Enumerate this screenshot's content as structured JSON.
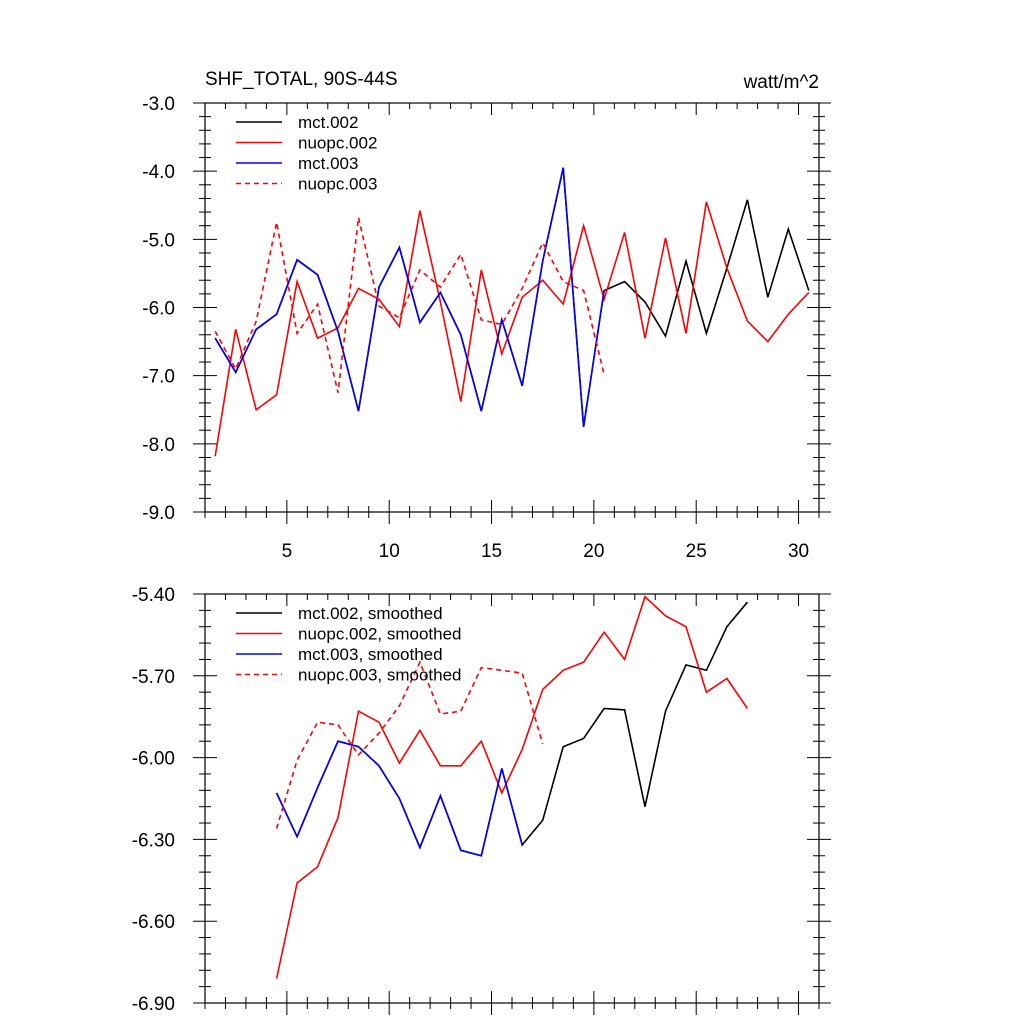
{
  "chart_data": [
    {
      "type": "line",
      "title": "SHF_TOTAL, 90S-44S",
      "units": "watt/m^2",
      "xlim": [
        1,
        31
      ],
      "ylim": [
        -9.0,
        -3.0
      ],
      "xticks": [
        5,
        10,
        15,
        20,
        25,
        30
      ],
      "xtick_labels": [
        "5",
        "10",
        "15",
        "20",
        "25",
        "30"
      ],
      "yticks": [
        -9.0,
        -8.0,
        -7.0,
        -6.0,
        -5.0,
        -4.0,
        -3.0
      ],
      "ytick_labels": [
        "-9.0",
        "-8.0",
        "-7.0",
        "-6.0",
        "-5.0",
        "-4.0",
        "-3.0"
      ],
      "legend_position": "top-left",
      "series": [
        {
          "name": "mct.002",
          "color": "#000000",
          "dashed": false,
          "x": [
            1.5,
            2.5,
            3.5,
            4.5,
            5.5,
            6.5,
            7.5,
            8.5,
            9.5,
            10.5,
            11.5,
            12.5,
            13.5,
            14.5,
            15.5,
            16.5,
            17.5,
            18.5,
            19.5,
            20.5,
            21.5,
            22.5,
            23.5,
            24.5,
            25.5,
            26.5,
            27.5,
            28.5,
            29.5,
            30.5
          ],
          "values": [
            -6.45,
            -6.95,
            -6.32,
            -6.1,
            -5.3,
            -5.52,
            -6.35,
            -7.52,
            -5.7,
            -5.12,
            -6.22,
            -5.78,
            -6.4,
            -7.52,
            -6.18,
            -7.15,
            -5.32,
            -3.95,
            -7.75,
            -5.75,
            -5.62,
            -5.92,
            -6.42,
            -5.32,
            -6.38,
            -5.42,
            -4.42,
            -5.85,
            -4.85,
            -5.75
          ]
        },
        {
          "name": "nuopc.002",
          "color": "#ff0000",
          "dashed": false,
          "x": [
            1.5,
            2.5,
            3.5,
            4.5,
            5.5,
            6.5,
            7.5,
            8.5,
            9.5,
            10.5,
            11.5,
            12.5,
            13.5,
            14.5,
            15.5,
            16.5,
            17.5,
            18.5,
            19.5,
            20.5,
            21.5,
            22.5,
            23.5,
            24.5,
            25.5,
            26.5,
            27.5,
            28.5,
            29.5,
            30.5
          ],
          "values": [
            -8.18,
            -6.32,
            -7.5,
            -7.28,
            -5.62,
            -6.45,
            -6.3,
            -5.72,
            -5.88,
            -6.28,
            -4.58,
            -5.92,
            -7.38,
            -5.45,
            -6.68,
            -5.85,
            -5.6,
            -5.95,
            -4.8,
            -5.88,
            -4.9,
            -6.45,
            -4.98,
            -6.38,
            -4.45,
            -5.42,
            -6.2,
            -6.5,
            -6.1,
            -5.78
          ]
        },
        {
          "name": "mct.003",
          "color": "#0000ff",
          "dashed": false,
          "x": [
            1.5,
            2.5,
            3.5,
            4.5,
            5.5,
            6.5,
            7.5,
            8.5,
            9.5,
            10.5,
            11.5,
            12.5,
            13.5,
            14.5,
            15.5,
            16.5,
            17.5,
            18.5,
            19.5,
            20.5
          ],
          "values": [
            -6.45,
            -6.95,
            -6.32,
            -6.1,
            -5.3,
            -5.52,
            -6.35,
            -7.52,
            -5.7,
            -5.12,
            -6.22,
            -5.78,
            -6.4,
            -7.52,
            -6.18,
            -7.15,
            -5.32,
            -3.95,
            -7.75,
            -5.75
          ]
        },
        {
          "name": "nuopc.003",
          "color": "#ff0000",
          "dashed": true,
          "x": [
            1.5,
            2.5,
            3.5,
            4.5,
            5.5,
            6.5,
            7.5,
            8.5,
            9.5,
            10.5,
            11.5,
            12.5,
            13.5,
            14.5,
            15.5,
            16.5,
            17.5,
            18.5,
            19.5,
            20.5
          ],
          "values": [
            -6.35,
            -6.9,
            -6.2,
            -4.75,
            -6.38,
            -5.95,
            -7.25,
            -4.68,
            -5.98,
            -6.15,
            -5.45,
            -5.7,
            -5.22,
            -6.18,
            -6.25,
            -5.72,
            -5.05,
            -5.62,
            -5.75,
            -6.98
          ]
        }
      ]
    },
    {
      "type": "line",
      "title": "",
      "xlim": [
        1,
        31
      ],
      "ylim": [
        -6.9,
        -5.4
      ],
      "xticks": [
        5,
        10,
        15,
        20,
        25,
        30
      ],
      "yticks": [
        -6.9,
        -6.6,
        -6.3,
        -6.0,
        -5.7,
        -5.4
      ],
      "ytick_labels": [
        "-6.90",
        "-6.60",
        "-6.30",
        "-6.00",
        "-5.70",
        "-5.40"
      ],
      "legend_position": "top-left",
      "series": [
        {
          "name": "mct.002, smoothed",
          "color": "#000000",
          "dashed": false,
          "x": [
            4.5,
            5.5,
            6.5,
            7.5,
            8.5,
            9.5,
            10.5,
            11.5,
            12.5,
            13.5,
            14.5,
            15.5,
            16.5,
            17.5,
            18.5,
            19.5,
            20.5,
            21.5,
            22.5,
            23.5,
            24.5,
            25.5,
            26.5,
            27.5
          ],
          "values": [
            -6.13,
            -6.29,
            -6.11,
            -5.94,
            -5.96,
            -6.03,
            -6.15,
            -6.33,
            -6.14,
            -6.34,
            -6.36,
            -6.04,
            -6.32,
            -6.23,
            -5.96,
            -5.93,
            -5.82,
            -5.825,
            -6.18,
            -5.83,
            -5.66,
            -5.68,
            -5.52,
            -5.43
          ]
        },
        {
          "name": "nuopc.002, smoothed",
          "color": "#ff0000",
          "dashed": false,
          "x": [
            4.5,
            5.5,
            6.5,
            7.5,
            8.5,
            9.5,
            10.5,
            11.5,
            12.5,
            13.5,
            14.5,
            15.5,
            16.5,
            17.5,
            18.5,
            19.5,
            20.5,
            21.5,
            22.5,
            23.5,
            24.5,
            25.5,
            26.5,
            27.5
          ],
          "values": [
            -6.81,
            -6.46,
            -6.4,
            -6.22,
            -5.83,
            -5.87,
            -6.02,
            -5.9,
            -6.03,
            -6.03,
            -5.94,
            -6.13,
            -5.97,
            -5.75,
            -5.68,
            -5.65,
            -5.54,
            -5.64,
            -5.41,
            -5.48,
            -5.52,
            -5.76,
            -5.71,
            -5.82
          ]
        },
        {
          "name": "mct.003, smoothed",
          "color": "#0000ff",
          "dashed": false,
          "x": [
            4.5,
            5.5,
            6.5,
            7.5,
            8.5,
            9.5,
            10.5,
            11.5,
            12.5,
            13.5,
            14.5,
            15.5,
            16.5
          ],
          "values": [
            -6.13,
            -6.29,
            -6.11,
            -5.94,
            -5.96,
            -6.03,
            -6.15,
            -6.33,
            -6.14,
            -6.34,
            -6.36,
            -6.04,
            -6.32
          ]
        },
        {
          "name": "nuopc.003, smoothed",
          "color": "#ff0000",
          "dashed": true,
          "x": [
            4.5,
            5.5,
            6.5,
            7.5,
            8.5,
            9.5,
            10.5,
            11.5,
            12.5,
            13.5,
            14.5,
            15.5,
            16.5,
            17.5
          ],
          "values": [
            -6.26,
            -6.01,
            -5.87,
            -5.88,
            -5.99,
            -5.91,
            -5.81,
            -5.65,
            -5.84,
            -5.83,
            -5.67,
            -5.68,
            -5.69,
            -5.95
          ]
        }
      ]
    }
  ]
}
